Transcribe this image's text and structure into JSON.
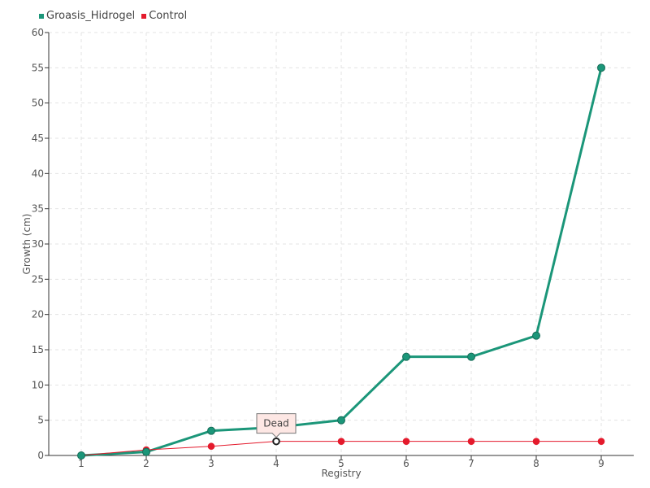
{
  "chart_data": {
    "type": "line",
    "categories": [
      "1",
      "2",
      "3",
      "4",
      "5",
      "6",
      "7",
      "8",
      "9"
    ],
    "xlabel": "Registry",
    "ylabel": "Growth (cm)",
    "ylim": [
      0,
      60
    ],
    "yticks": [
      0,
      5,
      10,
      15,
      20,
      25,
      30,
      35,
      40,
      45,
      50,
      55,
      60
    ],
    "grid": true,
    "legend_position": "top-left",
    "series": [
      {
        "name": "Groasis_Hidrogel",
        "color": "#1b9679",
        "values": [
          0,
          0.5,
          3.5,
          4,
          5,
          14,
          14,
          17,
          55
        ]
      },
      {
        "name": "Control",
        "color": "#e41a2c",
        "values": [
          0,
          0.8,
          1.3,
          2,
          2,
          2,
          2,
          2,
          2
        ]
      }
    ],
    "annotation": {
      "text": "Dead",
      "series": "Control",
      "category": "4",
      "value": 2
    }
  }
}
